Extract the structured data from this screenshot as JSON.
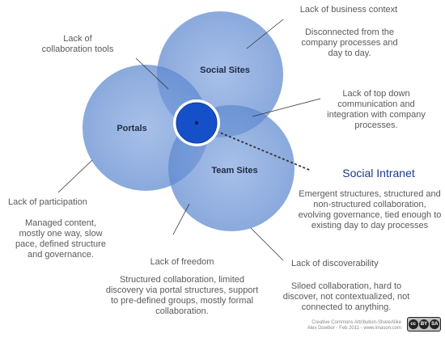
{
  "circles": {
    "social_sites": "Social Sites",
    "portals": "Portals",
    "team_sites": "Team Sites"
  },
  "highlight": {
    "title": "Social Intranet",
    "description": "Emergent structures, structured and non-structured collaboration, evolving governance, tied enough to existing day to day processes"
  },
  "annotations": {
    "lack_business_context": "Lack of business context",
    "disconnected": "Disconnected from the company processes and day to day.",
    "lack_collab_tools": "Lack of collaboration tools",
    "lack_top_down": "Lack of top down communication and integration with company processes.",
    "lack_participation": "Lack of participation",
    "managed_content": "Managed content, mostly one way, slow pace, defined structure and governance.",
    "lack_freedom": "Lack of freedom",
    "structured_collab": "Structured collaboration, limited discovery via portal structures, support to pre-defined groups, mostly formal collaboration.",
    "lack_discoverability": "Lack of discoverability",
    "siloed": "Siloed collaboration, hard to discover, not contextualized, not connected to anything."
  },
  "footer": {
    "line1": "Creative Commons Attribution-ShareAlike",
    "line2": "Alex Dowbor - Feb 2011 - www.imason.com"
  },
  "license_badge": {
    "cc": "cc",
    "by": "BY",
    "sa": "SA"
  },
  "colors": {
    "circle_fill": "#6f96d6",
    "circle_overlap": "#4a78c4",
    "center_fill": "#1650c8",
    "arrow_line": "#333333",
    "highlight_title": "#1a3a8a"
  }
}
